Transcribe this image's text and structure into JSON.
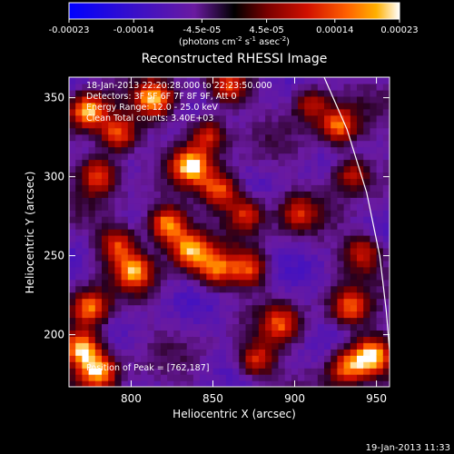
{
  "colorbar": {
    "tick_labels": [
      "-0.00023",
      "-0.00014",
      "-4.5e-05",
      "4.5e-05",
      "0.00014",
      "0.00023"
    ],
    "tick_values": [
      -0.00023,
      -0.00014,
      -4.5e-05,
      4.5e-05,
      0.00014,
      0.00023
    ],
    "range": [
      -0.00023,
      0.00023
    ],
    "units_main": "(photons cm",
    "units_exp1": "-2",
    "units_mid": " s",
    "units_exp2": "-1",
    "units_mid2": " asec",
    "units_exp3": "-2",
    "units_end": ")",
    "colors": [
      "#0000ff",
      "#3a10c8",
      "#6a1aa0",
      "#000000",
      "#7a0000",
      "#d01000",
      "#ff6000",
      "#ffb000",
      "#ffffff"
    ]
  },
  "chart_data": {
    "type": "heatmap",
    "title": "Reconstructed RHESSI Image",
    "xlabel": "Heliocentric X (arcsec)",
    "ylabel": "Heliocentric Y (arcsec)",
    "xlim": [
      762,
      958
    ],
    "ylim": [
      167,
      363
    ],
    "x_ticks": [
      800,
      850,
      900,
      950
    ],
    "y_ticks": [
      200,
      250,
      300,
      350
    ],
    "annotations": [
      "18-Jan-2013 22:20:28.000 to 22:23:50.000",
      "Detectors: 3F 5F 6F 7F 8F 9F, Att 0",
      "Energy Range: 12.0 - 25.0 keV",
      "Clean    Total counts: 3.40E+03"
    ],
    "peak_label": "Position of Peak = [762,187]",
    "limb_curve": [
      [
        918,
        363
      ],
      [
        932,
        330
      ],
      [
        944,
        290
      ],
      [
        952,
        250
      ],
      [
        956,
        215
      ],
      [
        958,
        190
      ]
    ],
    "bright_sources": [
      {
        "x": 772,
        "y": 340,
        "level": 0.85
      },
      {
        "x": 790,
        "y": 325,
        "level": 0.7
      },
      {
        "x": 778,
        "y": 300,
        "level": 0.65
      },
      {
        "x": 812,
        "y": 348,
        "level": 0.75
      },
      {
        "x": 845,
        "y": 325,
        "level": 0.6
      },
      {
        "x": 835,
        "y": 305,
        "level": 0.85
      },
      {
        "x": 852,
        "y": 290,
        "level": 0.7
      },
      {
        "x": 868,
        "y": 275,
        "level": 0.6
      },
      {
        "x": 820,
        "y": 268,
        "level": 0.9
      },
      {
        "x": 834,
        "y": 252,
        "level": 0.8
      },
      {
        "x": 850,
        "y": 240,
        "level": 0.65
      },
      {
        "x": 800,
        "y": 238,
        "level": 0.7
      },
      {
        "x": 790,
        "y": 255,
        "level": 0.6
      },
      {
        "x": 773,
        "y": 215,
        "level": 0.75
      },
      {
        "x": 768,
        "y": 190,
        "level": 0.95
      },
      {
        "x": 778,
        "y": 175,
        "level": 0.8
      },
      {
        "x": 870,
        "y": 240,
        "level": 0.6
      },
      {
        "x": 890,
        "y": 205,
        "level": 0.55
      },
      {
        "x": 875,
        "y": 182,
        "level": 0.6
      },
      {
        "x": 925,
        "y": 330,
        "level": 0.7
      },
      {
        "x": 933,
        "y": 300,
        "level": 0.55
      },
      {
        "x": 940,
        "y": 250,
        "level": 0.55
      },
      {
        "x": 932,
        "y": 215,
        "level": 0.6
      },
      {
        "x": 945,
        "y": 185,
        "level": 0.9
      },
      {
        "x": 930,
        "y": 178,
        "level": 0.7
      },
      {
        "x": 900,
        "y": 275,
        "level": 0.45
      },
      {
        "x": 858,
        "y": 355,
        "level": 0.55
      },
      {
        "x": 908,
        "y": 345,
        "level": 0.5
      }
    ]
  },
  "footer_timestamp": "19-Jan-2013 11:33"
}
